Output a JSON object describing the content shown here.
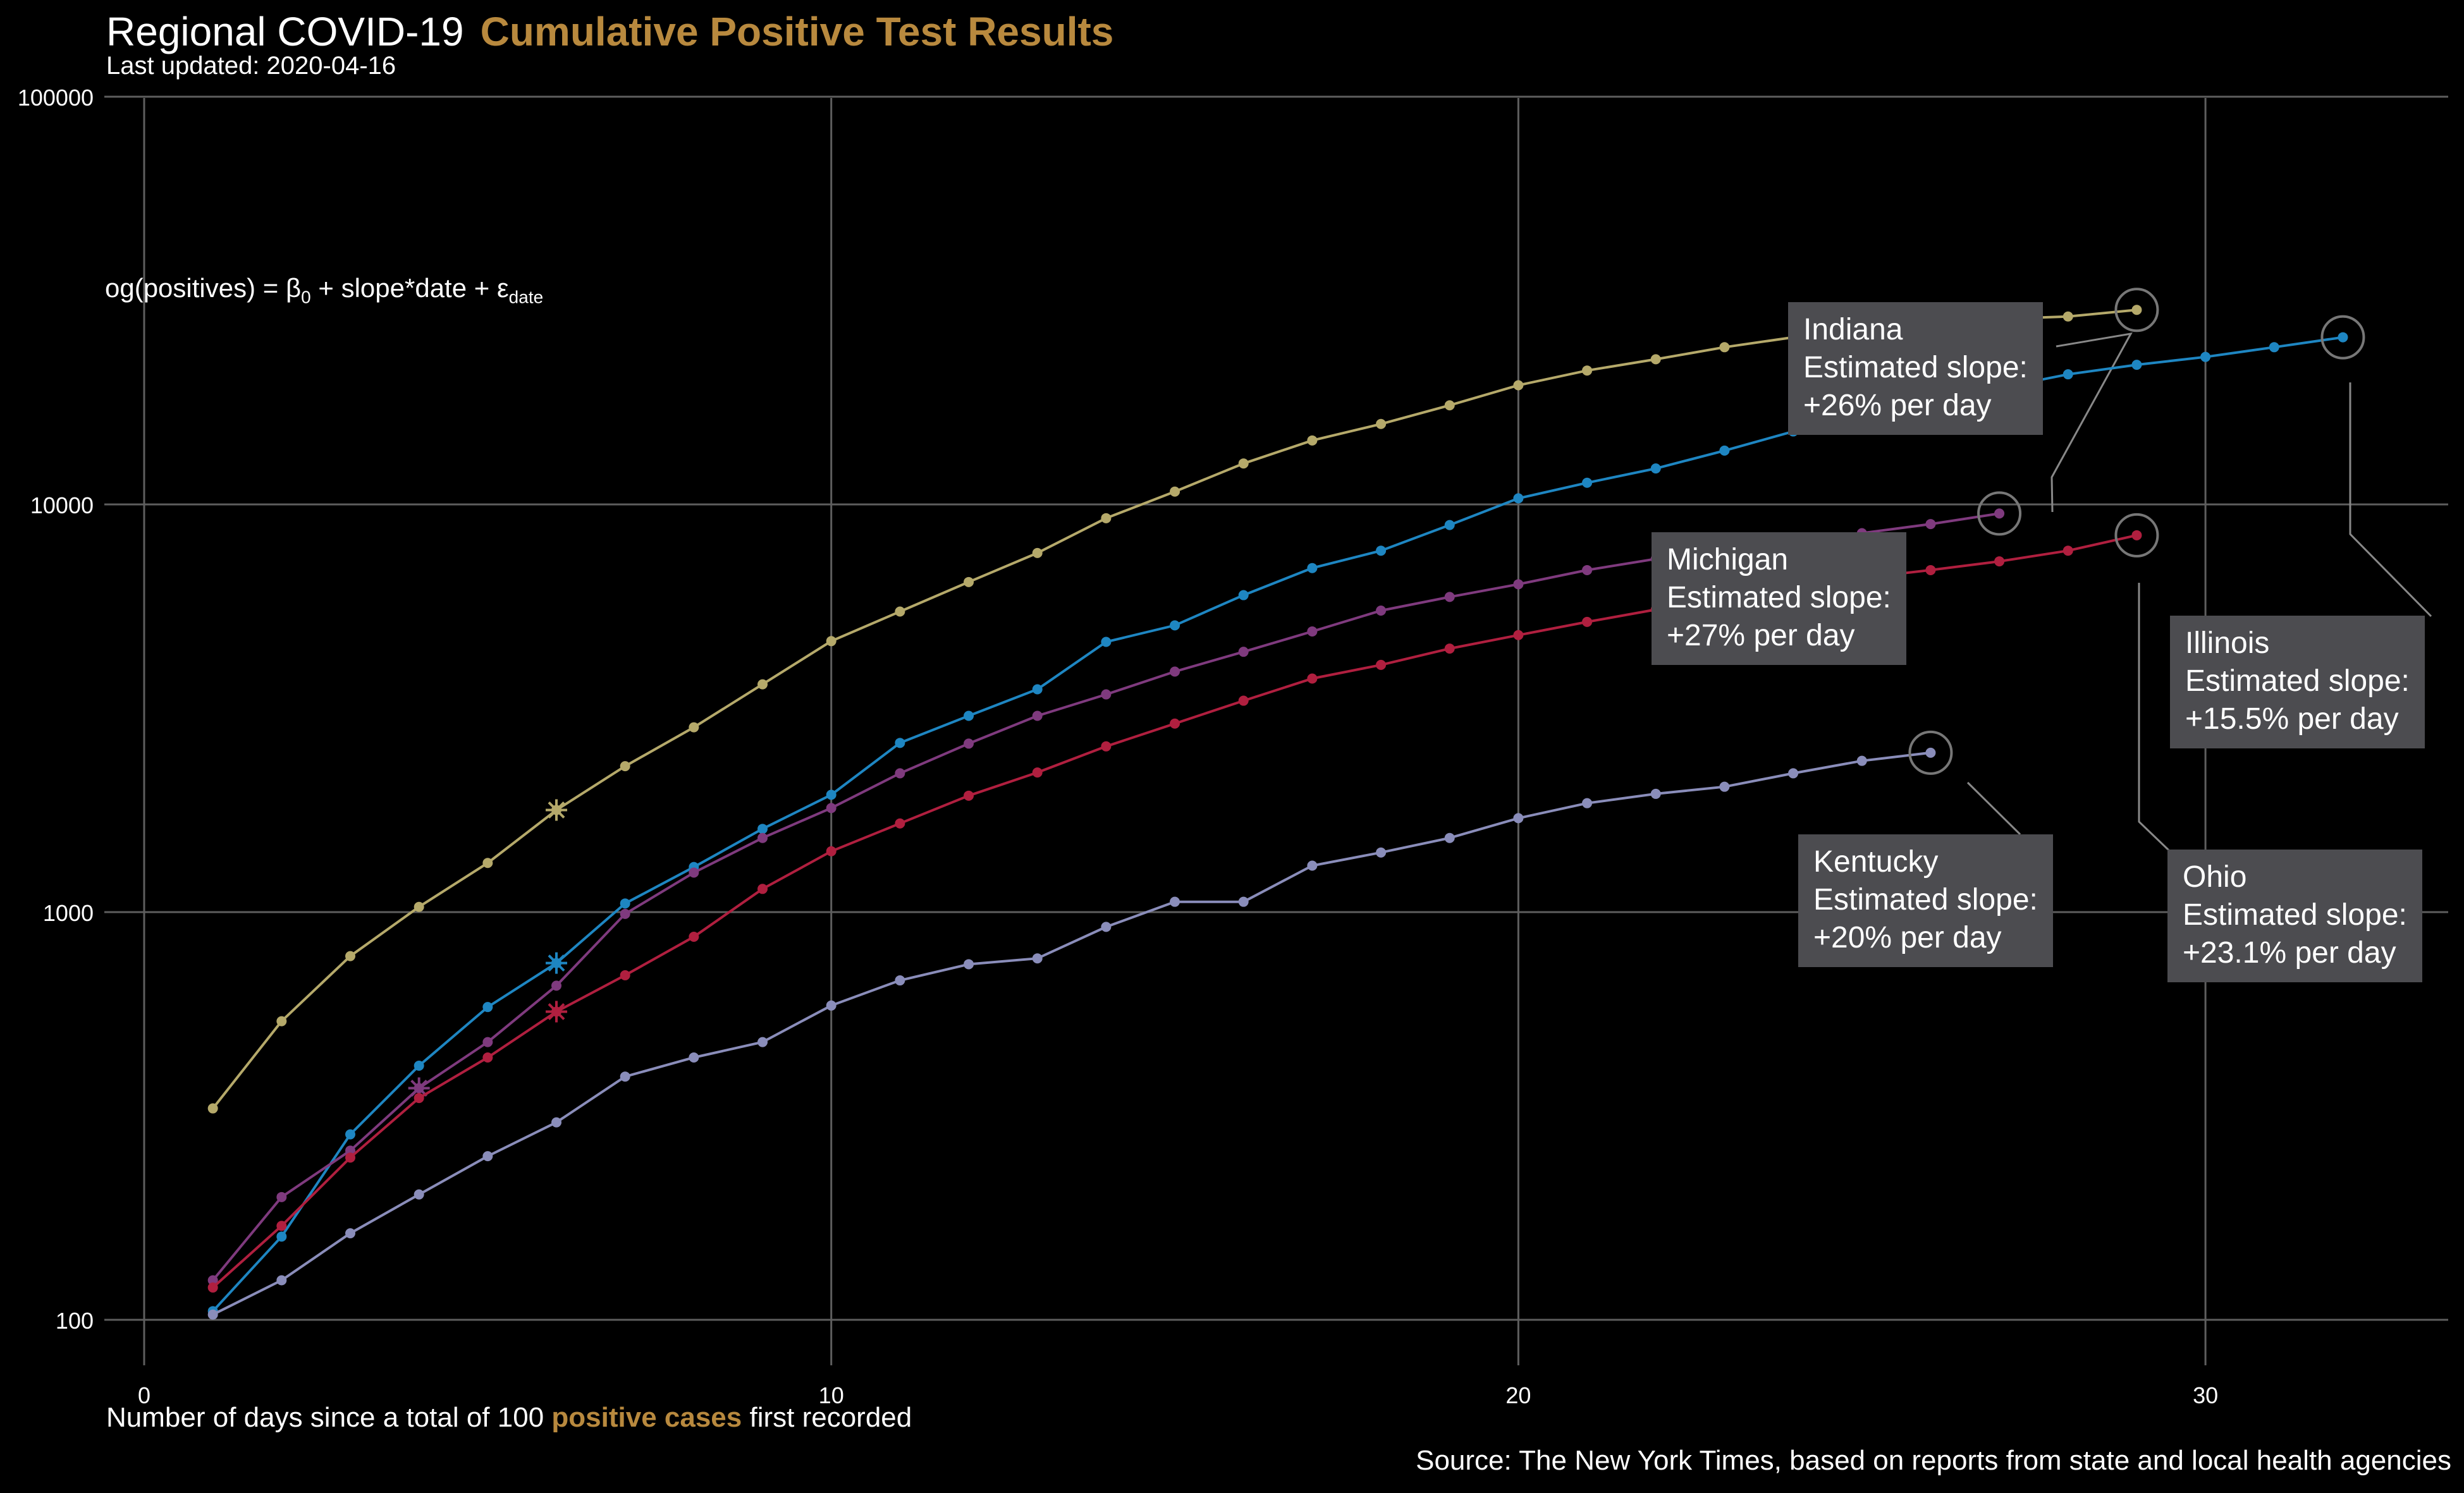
{
  "title": {
    "main": "Regional COVID-19",
    "accent": "Cumulative Positive Test Results"
  },
  "subtitle": "Last updated: 2020-04-16",
  "x_axis_label": {
    "prefix": "Number of days since a total of 100 ",
    "accent": "positive cases",
    "suffix": " first recorded"
  },
  "source": "Source: The New York Times, based on reports from state and local health agencies",
  "formula": {
    "lhs": "og(positives)",
    "eq": " = β",
    "b_sub": "0",
    "mid": " + slope*date + ε",
    "e_sub": "date"
  },
  "colors": {
    "accent": "#b8893e",
    "background": "#000000",
    "grid": "#5e5e5e",
    "label_box": "#4c4c50"
  },
  "annotations": [
    {
      "state": "Indiana",
      "line2": "Estimated slope:",
      "line3": "+26% per day"
    },
    {
      "state": "Michigan",
      "line2": "Estimated slope:",
      "line3": "+27% per day"
    },
    {
      "state": "Illinois",
      "line2": "Estimated slope:",
      "line3": "+15.5% per day"
    },
    {
      "state": "Kentucky",
      "line2": "Estimated slope:",
      "line3": "+20% per day"
    },
    {
      "state": "Ohio",
      "line2": "Estimated slope:",
      "line3": "+23.1% per day"
    }
  ],
  "chart_data": {
    "type": "line",
    "log_y": true,
    "xlim": [
      0,
      33
    ],
    "ylim": [
      70,
      100000
    ],
    "x_ticks": [
      0,
      10,
      20,
      30
    ],
    "y_ticks": [
      100,
      1000,
      10000,
      100000
    ],
    "x_tick_labels": [
      "0",
      "10",
      "20",
      "30"
    ],
    "y_tick_labels": [
      "100",
      "1000",
      "10000",
      "100000"
    ],
    "grid": true,
    "series": [
      {
        "name": "Indiana",
        "color": "#b5a96a",
        "x": [
          1,
          2,
          3,
          4,
          5,
          6,
          7,
          8,
          9,
          10,
          11,
          12,
          13,
          14,
          15,
          16,
          17,
          18,
          19,
          20,
          21,
          22,
          23,
          24,
          25,
          26,
          27,
          28,
          29
        ],
        "y": [
          330,
          540,
          780,
          1030,
          1320,
          1780,
          2280,
          2840,
          3620,
          4620,
          5460,
          6450,
          7600,
          9250,
          10750,
          12600,
          14350,
          15750,
          17500,
          19600,
          21300,
          22700,
          24300,
          25700,
          26700,
          27600,
          28500,
          28900,
          30000
        ],
        "star_x": 6,
        "star_y": 1780
      },
      {
        "name": "Illinois",
        "color": "#1e86c2",
        "x": [
          1,
          2,
          3,
          4,
          5,
          6,
          7,
          8,
          9,
          10,
          11,
          12,
          13,
          14,
          15,
          16,
          17,
          18,
          19,
          20,
          21,
          22,
          23,
          24,
          25,
          26,
          27,
          28,
          29,
          30,
          31,
          32
        ],
        "y": [
          105,
          160,
          285,
          420,
          585,
          750,
          1050,
          1290,
          1600,
          1940,
          2600,
          3030,
          3520,
          4600,
          5050,
          5990,
          6980,
          7700,
          8900,
          10350,
          11300,
          12250,
          13550,
          15100,
          16500,
          17900,
          19300,
          20850,
          22000,
          23000,
          24300,
          25700
        ],
        "star_x": 6,
        "star_y": 750
      },
      {
        "name": "Michigan",
        "color": "#7f3a7e",
        "x": [
          1,
          2,
          3,
          4,
          5,
          6,
          7,
          8,
          9,
          10,
          11,
          12,
          13,
          14,
          15,
          16,
          17,
          18,
          19,
          20,
          21,
          22,
          23,
          24,
          25,
          26,
          27
        ],
        "y": [
          125,
          200,
          260,
          370,
          480,
          660,
          990,
          1250,
          1520,
          1800,
          2190,
          2590,
          3030,
          3420,
          3890,
          4350,
          4880,
          5490,
          5930,
          6370,
          6900,
          7350,
          7800,
          8200,
          8500,
          8950,
          9500
        ],
        "star_x": 4,
        "star_y": 370
      },
      {
        "name": "Ohio",
        "color": "#b01f3f",
        "x": [
          1,
          2,
          3,
          4,
          5,
          6,
          7,
          8,
          9,
          10,
          11,
          12,
          13,
          14,
          15,
          16,
          17,
          18,
          19,
          20,
          21,
          22,
          23,
          24,
          25,
          26,
          27,
          28,
          29
        ],
        "y": [
          120,
          170,
          250,
          350,
          440,
          570,
          700,
          870,
          1140,
          1410,
          1650,
          1930,
          2200,
          2550,
          2900,
          3300,
          3740,
          4040,
          4430,
          4780,
          5150,
          5520,
          5880,
          6250,
          6600,
          6900,
          7250,
          7700,
          8400
        ],
        "star_x": 6,
        "star_y": 570
      },
      {
        "name": "Kentucky",
        "color": "#8a8dba",
        "x": [
          1,
          2,
          3,
          4,
          5,
          6,
          7,
          8,
          9,
          10,
          11,
          12,
          13,
          14,
          15,
          16,
          17,
          18,
          19,
          20,
          21,
          22,
          23,
          24,
          25,
          26
        ],
        "y": [
          103,
          125,
          163,
          203,
          252,
          305,
          395,
          440,
          480,
          590,
          680,
          745,
          770,
          920,
          1060,
          1060,
          1300,
          1400,
          1520,
          1700,
          1850,
          1950,
          2030,
          2190,
          2350,
          2460
        ],
        "star_x": null,
        "star_y": null
      }
    ]
  }
}
